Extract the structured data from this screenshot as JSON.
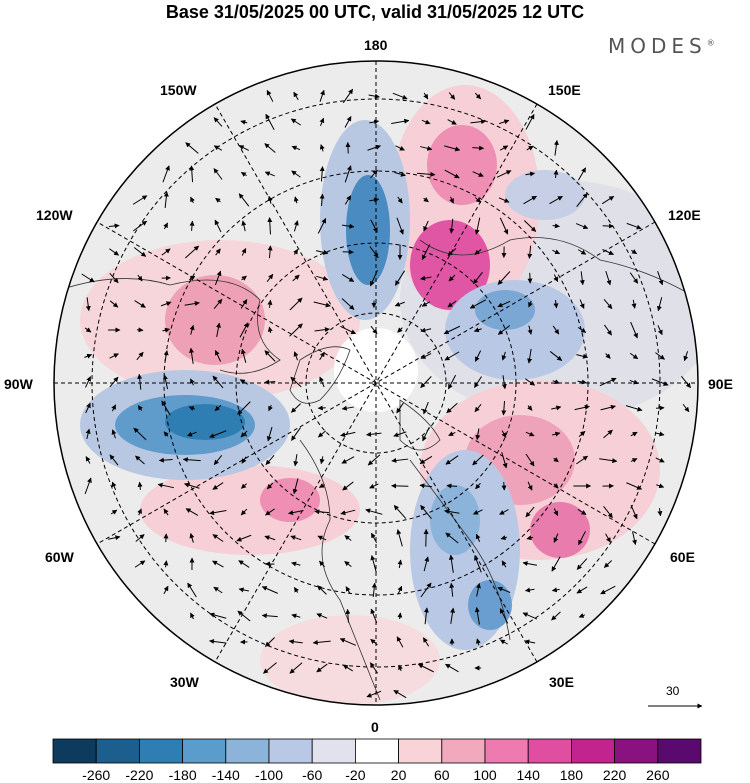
{
  "title": "Base 31/05/2025 00 UTC, valid 31/05/2025 12 UTC",
  "logo": "MODES",
  "logo_mark": "®",
  "longitude_labels": {
    "lon_180": "180",
    "lon_150e": "150E",
    "lon_120e": "120E",
    "lon_90e": "90E",
    "lon_60e": "60E",
    "lon_30e": "30E",
    "lon_0": "0",
    "lon_30w": "30W",
    "lon_60w": "60W",
    "lon_90w": "90W",
    "lon_120w": "120W",
    "lon_150w": "150W"
  },
  "reference_vector": "30",
  "colorbar": {
    "ticks": [
      "-260",
      "-220",
      "-180",
      "-140",
      "-100",
      "-60",
      "-20",
      "20",
      "60",
      "100",
      "140",
      "180",
      "220",
      "260"
    ],
    "colors": [
      "#0d3b5e",
      "#1c5f8f",
      "#2e7eb4",
      "#5a9ccc",
      "#8cb4da",
      "#b9c8e4",
      "#e2e2ef",
      "#ffffff",
      "#f8d4d8",
      "#f3a9bd",
      "#ee7bb0",
      "#e04ea2",
      "#c2238f",
      "#8a1280",
      "#5a0a6e"
    ]
  },
  "map_colors": {
    "ocean_background": "#ececec",
    "outline": "#000000"
  }
}
